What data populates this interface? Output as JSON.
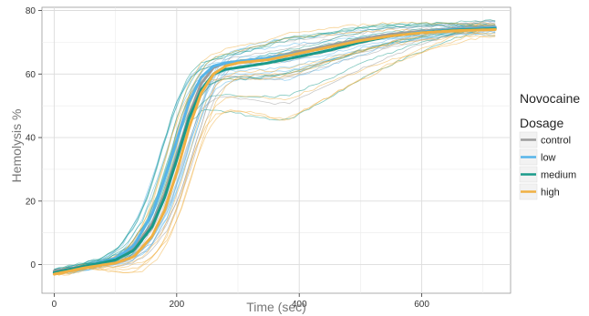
{
  "chart_data": {
    "type": "line",
    "xlabel": "Time (sec)",
    "ylabel": "Hemolysis %",
    "xlim": [
      -20,
      745
    ],
    "ylim": [
      -9,
      81
    ],
    "xticks": [
      0,
      200,
      400,
      600
    ],
    "yticks": [
      0,
      20,
      40,
      60,
      80
    ],
    "grid": true,
    "legend": {
      "title_line1": "Novocaine",
      "title_line2": "Dosage",
      "placement": "right"
    },
    "series": [
      {
        "name": "control",
        "color": "#9b9b9b",
        "x": [
          0,
          50,
          100,
          130,
          160,
          180,
          200,
          220,
          240,
          260,
          280,
          300,
          350,
          400,
          450,
          500,
          550,
          600,
          650,
          720
        ],
        "values": [
          -2,
          -0.5,
          1.5,
          5,
          13,
          22,
          34,
          47,
          57,
          62,
          63.5,
          64,
          65,
          67,
          69,
          71,
          72.5,
          73.5,
          74.2,
          74.8
        ]
      },
      {
        "name": "low",
        "color": "#56b4e9",
        "x": [
          0,
          50,
          100,
          130,
          160,
          180,
          200,
          220,
          240,
          260,
          280,
          300,
          350,
          400,
          450,
          500,
          550,
          600,
          650,
          720
        ],
        "values": [
          -2.5,
          -0.5,
          2,
          6,
          16,
          27,
          39,
          51,
          59,
          62.5,
          63.5,
          64,
          65,
          66.5,
          68.5,
          70.5,
          72,
          73.2,
          74,
          74.6
        ]
      },
      {
        "name": "medium",
        "color": "#1a9a8a",
        "x": [
          0,
          50,
          100,
          130,
          160,
          180,
          200,
          220,
          240,
          260,
          280,
          300,
          350,
          400,
          450,
          500,
          550,
          600,
          650,
          720
        ],
        "values": [
          -2.5,
          -0.5,
          1.5,
          4.5,
          12,
          21,
          33,
          46,
          55,
          60,
          61.5,
          62,
          63.5,
          65.5,
          67.5,
          70,
          72,
          73,
          73.8,
          74.3
        ]
      },
      {
        "name": "high",
        "color": "#f0b043",
        "x": [
          0,
          50,
          100,
          130,
          160,
          180,
          200,
          220,
          240,
          260,
          280,
          300,
          350,
          400,
          450,
          500,
          550,
          600,
          650,
          720
        ],
        "values": [
          -3,
          -1,
          0.5,
          2.5,
          9,
          17,
          29,
          43,
          54,
          60,
          62.5,
          63.5,
          64.5,
          66.5,
          68.5,
          70.5,
          72,
          73,
          73.6,
          74
        ]
      }
    ]
  }
}
